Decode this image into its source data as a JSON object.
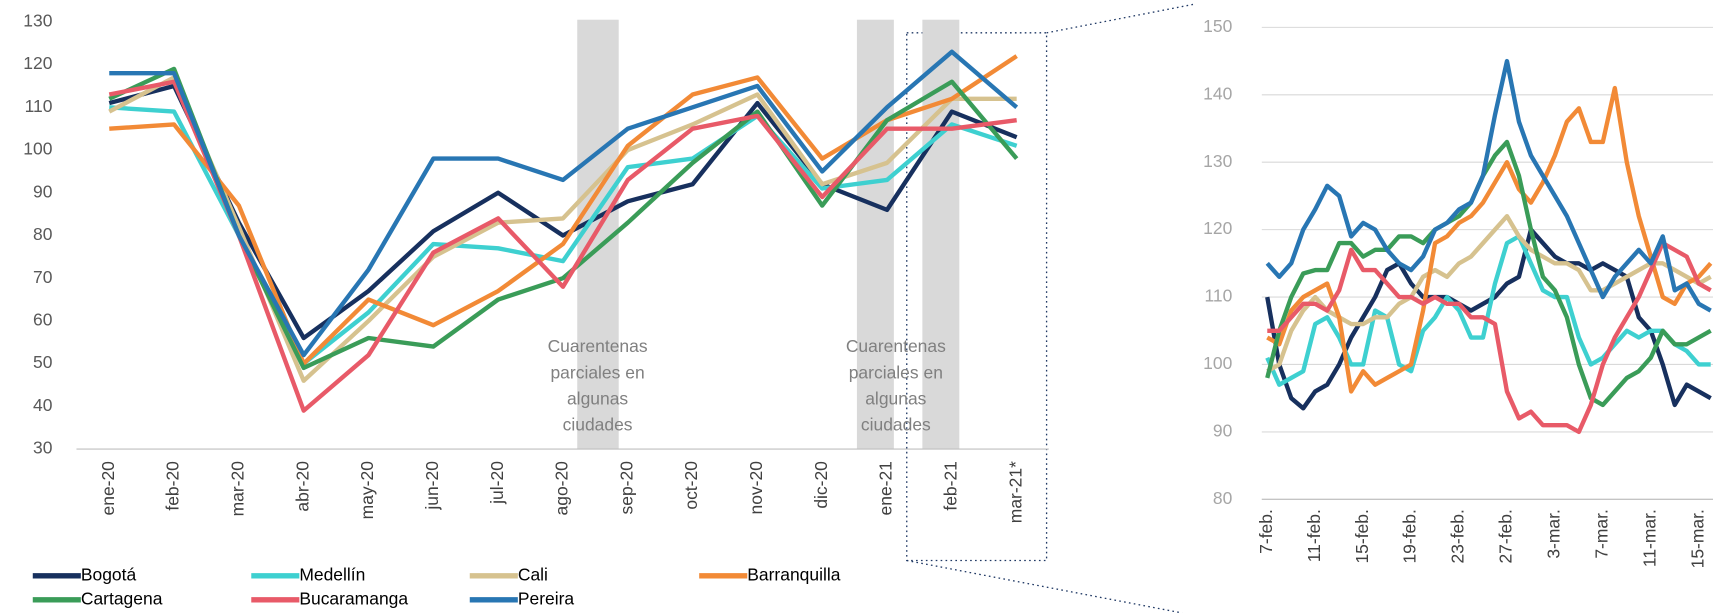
{
  "chart_data": [
    {
      "type": "line",
      "categories": [
        "ene-20",
        "feb-20",
        "mar-20",
        "abr-20",
        "may-20",
        "jun-20",
        "jul-20",
        "ago-20",
        "sep-20",
        "oct-20",
        "nov-20",
        "dic-20",
        "ene-21",
        "feb-21",
        "mar-21*"
      ],
      "ylim": [
        30,
        130
      ],
      "yticks": [
        30,
        40,
        50,
        60,
        70,
        80,
        90,
        100,
        110,
        120,
        130
      ],
      "grid": false,
      "legend": "bottom",
      "annotations": [
        [
          "Cuarentenas",
          "parciales en",
          "algunas",
          "ciudades"
        ],
        [
          "Cuarentenas",
          "parciales en",
          "algunas",
          "ciudades"
        ]
      ],
      "series": [
        {
          "name": "Bogotá",
          "color": "#17305e",
          "values": [
            111,
            115,
            83,
            56,
            67,
            81,
            90,
            80,
            88,
            92,
            111,
            92,
            86,
            109,
            103
          ]
        },
        {
          "name": "Medellín",
          "color": "#3ed0d0",
          "values": [
            110,
            109,
            80,
            50,
            62,
            78,
            77,
            74,
            96,
            98,
            108,
            91,
            93,
            106,
            101
          ]
        },
        {
          "name": "Cali",
          "color": "#d6c28f",
          "values": [
            109,
            117,
            82,
            46,
            60,
            75,
            83,
            84,
            100,
            106,
            113,
            92,
            97,
            112,
            112
          ]
        },
        {
          "name": "Barranquilla",
          "color": "#f28a36",
          "values": [
            105,
            106,
            87,
            50,
            65,
            59,
            67,
            78,
            101,
            113,
            117,
            98,
            107,
            112,
            122
          ]
        },
        {
          "name": "Cartagena",
          "color": "#3a9c58",
          "values": [
            112,
            119,
            80,
            49,
            56,
            54,
            65,
            70,
            83,
            97,
            109,
            87,
            107,
            116,
            98
          ]
        },
        {
          "name": "Bucaramanga",
          "color": "#e85a68",
          "values": [
            113,
            116,
            80,
            39,
            52,
            76,
            84,
            68,
            93,
            105,
            108,
            89,
            105,
            105,
            107
          ]
        },
        {
          "name": "Pereira",
          "color": "#2876b3",
          "values": [
            118,
            118,
            80,
            52,
            72,
            98,
            98,
            93,
            105,
            110,
            115,
            95,
            110,
            123,
            110
          ]
        }
      ]
    },
    {
      "type": "line",
      "categories": [
        "7-feb.",
        null,
        null,
        null,
        "11-feb.",
        null,
        null,
        null,
        "15-feb.",
        null,
        null,
        null,
        "19-feb.",
        null,
        null,
        null,
        "23-feb.",
        null,
        null,
        null,
        "27-feb.",
        null,
        null,
        null,
        "3-mar.",
        null,
        null,
        null,
        "7-mar.",
        null,
        null,
        null,
        "11-mar.",
        null,
        null,
        null,
        "15-mar.",
        null
      ],
      "ylim": [
        80,
        150
      ],
      "yticks": [
        80,
        90,
        100,
        110,
        120,
        130,
        140,
        150
      ],
      "grid": true,
      "series": [
        {
          "color": "#17305e",
          "values": [
            110,
            100,
            95,
            93.5,
            96,
            97,
            100,
            104,
            107,
            110,
            114,
            115,
            112,
            110,
            110,
            110,
            109,
            108,
            109,
            110,
            112,
            113,
            120,
            118,
            116,
            115,
            115,
            114,
            115,
            114,
            113,
            107,
            105,
            100,
            94,
            97,
            96,
            95
          ]
        },
        {
          "color": "#3ed0d0",
          "values": [
            101,
            97,
            98,
            99,
            106,
            107,
            104,
            100,
            100,
            108,
            107,
            100,
            99,
            105,
            107,
            110,
            108,
            104,
            104,
            112,
            118,
            119,
            115,
            111,
            110,
            110,
            104,
            100,
            101,
            103,
            105,
            104,
            105,
            105,
            103,
            102,
            100,
            100
          ]
        },
        {
          "color": "#d6c28f",
          "values": [
            99,
            100,
            105,
            108,
            110,
            108,
            107,
            106,
            106,
            107,
            107,
            109,
            110,
            113,
            114,
            113,
            115,
            116,
            118,
            120,
            122,
            119,
            117,
            116,
            115,
            115,
            114,
            111,
            111,
            112,
            113,
            114,
            115,
            115,
            114,
            113,
            112,
            113
          ]
        },
        {
          "color": "#f28a36",
          "values": [
            104,
            103,
            108,
            110,
            111,
            112,
            107,
            96,
            99,
            97,
            98,
            99,
            100,
            108,
            118,
            119,
            121,
            122,
            124,
            127,
            130,
            126,
            124,
            127,
            131,
            136,
            138,
            133,
            133,
            141,
            130,
            122,
            116,
            110,
            109,
            112,
            113,
            115
          ]
        },
        {
          "color": "#3a9c58",
          "values": [
            98,
            105,
            110,
            113.5,
            114,
            114,
            118,
            118,
            116,
            117,
            117,
            119,
            119,
            118,
            120,
            121,
            122,
            124,
            128,
            131,
            133,
            128,
            120,
            113,
            111,
            107,
            100,
            95,
            94,
            96,
            98,
            99,
            101,
            105,
            103,
            103,
            104,
            105
          ]
        },
        {
          "color": "#e85a68",
          "values": [
            105,
            105,
            107,
            109,
            109,
            108,
            111,
            117,
            114,
            114,
            112,
            110,
            110,
            109,
            110,
            109,
            109,
            107,
            107,
            106,
            96,
            92,
            93,
            91,
            91,
            91,
            90,
            94,
            100,
            104,
            107,
            110,
            114,
            118,
            117,
            116,
            112,
            111
          ]
        },
        {
          "color": "#2876b3",
          "values": [
            115,
            113,
            115,
            120,
            123,
            126.5,
            125,
            119,
            121,
            120,
            117,
            115,
            114,
            116,
            120,
            121,
            123,
            124,
            128,
            137,
            145,
            136,
            131,
            128,
            125,
            122,
            118,
            114,
            110,
            113,
            115,
            117,
            115,
            119,
            111,
            112,
            109,
            108
          ]
        }
      ]
    }
  ]
}
